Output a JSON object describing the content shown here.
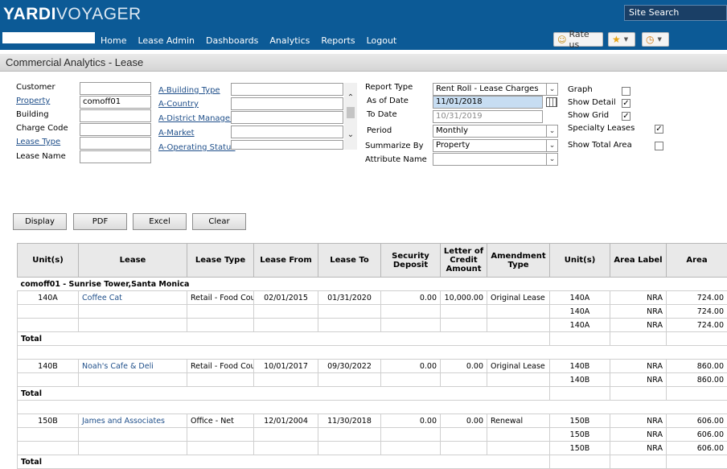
{
  "header": {
    "logo_bold": "YARDI",
    "logo_thin": "VOYAGER",
    "site_search": "Site Search",
    "nav": [
      "Home",
      "Lease Admin",
      "Dashboards",
      "Analytics",
      "Reports",
      "Logout"
    ],
    "rate_us": "Rate us"
  },
  "page_title": "Commercial Analytics - Lease",
  "form": {
    "customer_label": "Customer",
    "property_label": "Property",
    "property_value": "comoff01",
    "building_label": "Building",
    "charge_code_label": "Charge Code",
    "lease_type_label": "Lease Type",
    "lease_name_label": "Lease Name",
    "attr_links": [
      "A-Building Type",
      "A-Country",
      "A-District Manager",
      "A-Market",
      "A-Operating Status"
    ],
    "report_type_label": "Report Type",
    "report_type_value": "Rent Roll - Lease Charges",
    "as_of_date_label": "As of Date",
    "as_of_date_value": "11/01/2018",
    "to_date_label": "To Date",
    "to_date_value": "10/31/2019",
    "period_label": "Period",
    "period_value": "Monthly",
    "summarize_by_label": "Summarize By",
    "summarize_by_value": "Property",
    "attribute_name_label": "Attribute Name",
    "graph_label": "Graph",
    "show_detail_label": "Show Detail",
    "show_grid_label": "Show Grid",
    "specialty_leases_label": "Specialty Leases",
    "show_total_area_label": "Show Total Area",
    "graph_checked": false,
    "show_detail_checked": true,
    "show_grid_checked": true,
    "specialty_leases_checked": true,
    "show_total_area_checked": false
  },
  "buttons": {
    "display": "Display",
    "pdf": "PDF",
    "excel": "Excel",
    "clear": "Clear"
  },
  "table": {
    "headers": [
      "Unit(s)",
      "Lease",
      "Lease Type",
      "Lease From",
      "Lease To",
      "Security Deposit",
      "Letter of Credit Amount",
      "Amendment Type",
      "Unit(s)",
      "Area Label",
      "Area"
    ],
    "group_title": "comoff01 - Sunrise Tower,Santa Monica",
    "total_label": "Total",
    "leases": [
      {
        "unit": "140A",
        "lease": "Coffee Cat",
        "lease_type": "Retail - Food Court",
        "from": "02/01/2015",
        "to": "01/31/2020",
        "deposit": "0.00",
        "loc": "10,000.00",
        "amendment": "Original Lease",
        "rows": [
          {
            "unit": "140A",
            "label": "NRA",
            "area": "724.00"
          },
          {
            "unit": "140A",
            "label": "NRA",
            "area": "724.00"
          },
          {
            "unit": "140A",
            "label": "NRA",
            "area": "724.00"
          }
        ]
      },
      {
        "unit": "140B",
        "lease": "Noah's Cafe & Deli",
        "lease_type": "Retail - Food Court",
        "from": "10/01/2017",
        "to": "09/30/2022",
        "deposit": "0.00",
        "loc": "0.00",
        "amendment": "Original Lease",
        "rows": [
          {
            "unit": "140B",
            "label": "NRA",
            "area": "860.00"
          },
          {
            "unit": "140B",
            "label": "NRA",
            "area": "860.00"
          }
        ]
      },
      {
        "unit": "150B",
        "lease": "James and Associates",
        "lease_type": "Office - Net",
        "from": "12/01/2004",
        "to": "11/30/2018",
        "deposit": "0.00",
        "loc": "0.00",
        "amendment": "Renewal",
        "rows": [
          {
            "unit": "150B",
            "label": "NRA",
            "area": "606.00"
          },
          {
            "unit": "150B",
            "label": "NRA",
            "area": "606.00"
          },
          {
            "unit": "150B",
            "label": "NRA",
            "area": "606.00"
          }
        ]
      }
    ]
  }
}
